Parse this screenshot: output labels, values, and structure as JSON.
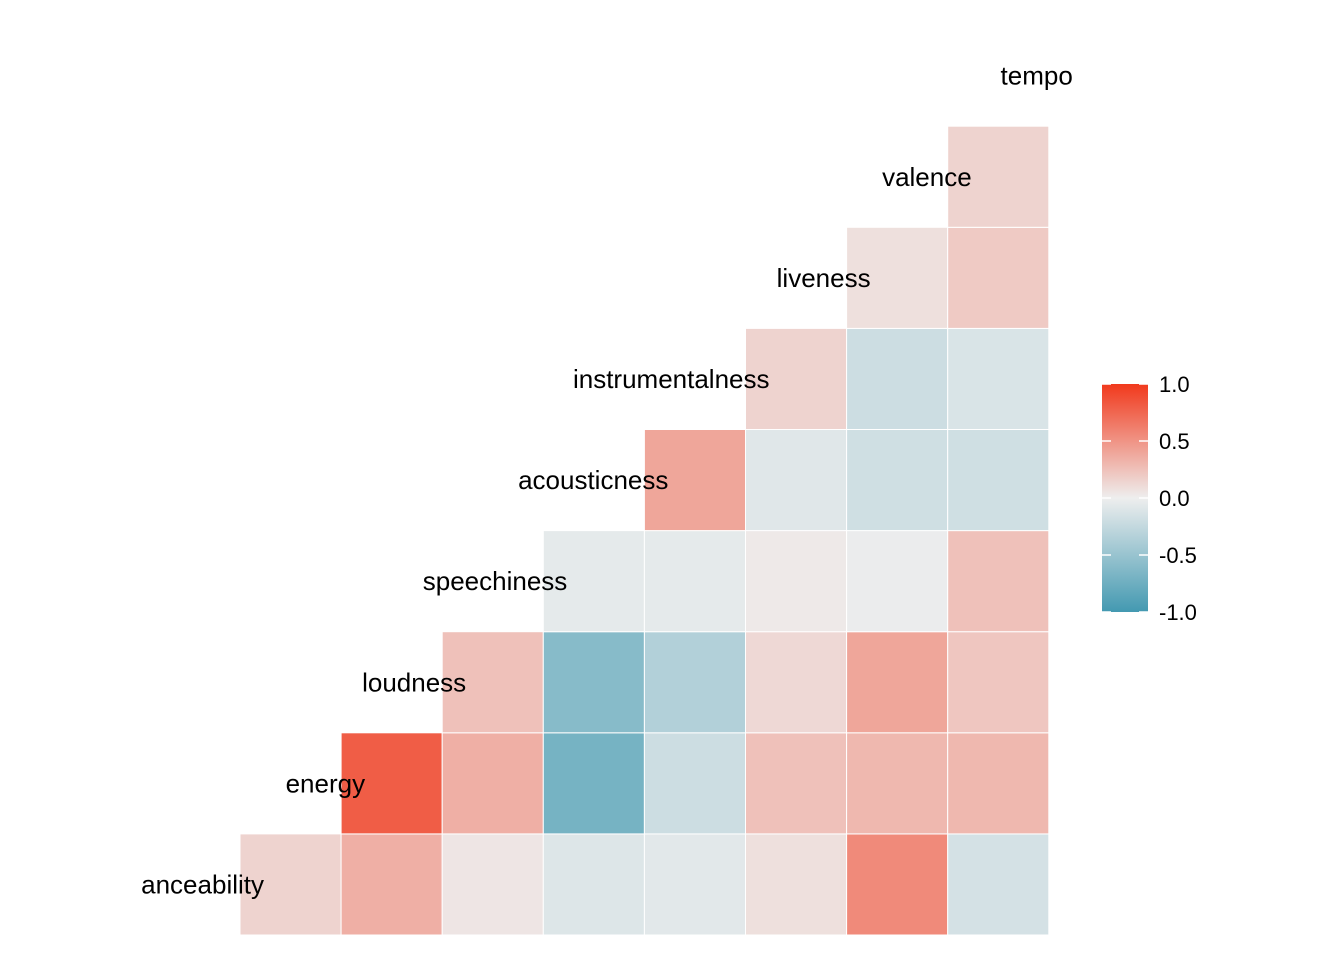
{
  "chart_data": {
    "type": "heatmap",
    "title": "",
    "variables": [
      "anceability",
      "energy",
      "loudness",
      "speechiness",
      "acousticness",
      "instrumentalness",
      "liveness",
      "valence",
      "tempo"
    ],
    "cells": [
      {
        "row": "anceability",
        "col": "energy",
        "value": 0.15
      },
      {
        "row": "anceability",
        "col": "loudness",
        "value": 0.35
      },
      {
        "row": "anceability",
        "col": "speechiness",
        "value": 0.05
      },
      {
        "row": "anceability",
        "col": "acousticness",
        "value": -0.1
      },
      {
        "row": "anceability",
        "col": "instrumentalness",
        "value": -0.07
      },
      {
        "row": "anceability",
        "col": "liveness",
        "value": 0.08
      },
      {
        "row": "anceability",
        "col": "valence",
        "value": 0.55
      },
      {
        "row": "anceability",
        "col": "tempo",
        "value": -0.15
      },
      {
        "row": "energy",
        "col": "loudness",
        "value": 0.8
      },
      {
        "row": "energy",
        "col": "speechiness",
        "value": 0.35
      },
      {
        "row": "energy",
        "col": "acousticness",
        "value": -0.7
      },
      {
        "row": "energy",
        "col": "instrumentalness",
        "value": -0.2
      },
      {
        "row": "energy",
        "col": "liveness",
        "value": 0.25
      },
      {
        "row": "energy",
        "col": "valence",
        "value": 0.3
      },
      {
        "row": "energy",
        "col": "tempo",
        "value": 0.3
      },
      {
        "row": "loudness",
        "col": "speechiness",
        "value": 0.25
      },
      {
        "row": "loudness",
        "col": "acousticness",
        "value": -0.6
      },
      {
        "row": "loudness",
        "col": "instrumentalness",
        "value": -0.35
      },
      {
        "row": "loudness",
        "col": "liveness",
        "value": 0.12
      },
      {
        "row": "loudness",
        "col": "valence",
        "value": 0.4
      },
      {
        "row": "loudness",
        "col": "tempo",
        "value": 0.22
      },
      {
        "row": "speechiness",
        "col": "acousticness",
        "value": -0.05
      },
      {
        "row": "speechiness",
        "col": "instrumentalness",
        "value": -0.05
      },
      {
        "row": "speechiness",
        "col": "liveness",
        "value": 0.03
      },
      {
        "row": "speechiness",
        "col": "valence",
        "value": -0.02
      },
      {
        "row": "speechiness",
        "col": "tempo",
        "value": 0.25
      },
      {
        "row": "acousticness",
        "col": "instrumentalness",
        "value": 0.4
      },
      {
        "row": "acousticness",
        "col": "liveness",
        "value": -0.08
      },
      {
        "row": "acousticness",
        "col": "valence",
        "value": -0.18
      },
      {
        "row": "acousticness",
        "col": "tempo",
        "value": -0.18
      },
      {
        "row": "instrumentalness",
        "col": "liveness",
        "value": 0.15
      },
      {
        "row": "instrumentalness",
        "col": "valence",
        "value": -0.2
      },
      {
        "row": "instrumentalness",
        "col": "tempo",
        "value": -0.12
      },
      {
        "row": "liveness",
        "col": "valence",
        "value": 0.08
      },
      {
        "row": "liveness",
        "col": "tempo",
        "value": 0.2
      },
      {
        "row": "valence",
        "col": "tempo",
        "value": 0.15
      }
    ],
    "legend": {
      "ticks": [
        1.0,
        0.5,
        0.0,
        -0.5,
        -1.0
      ],
      "tick_labels": [
        "1.0",
        "0.5",
        "0.0",
        "-0.5",
        "-1.0"
      ],
      "range": [
        -1,
        1
      ],
      "position": "right"
    },
    "colors": {
      "low": "#4399b1",
      "mid": "#eeeeee",
      "high": "#f1391c",
      "cell_border": "#ffffff"
    }
  }
}
